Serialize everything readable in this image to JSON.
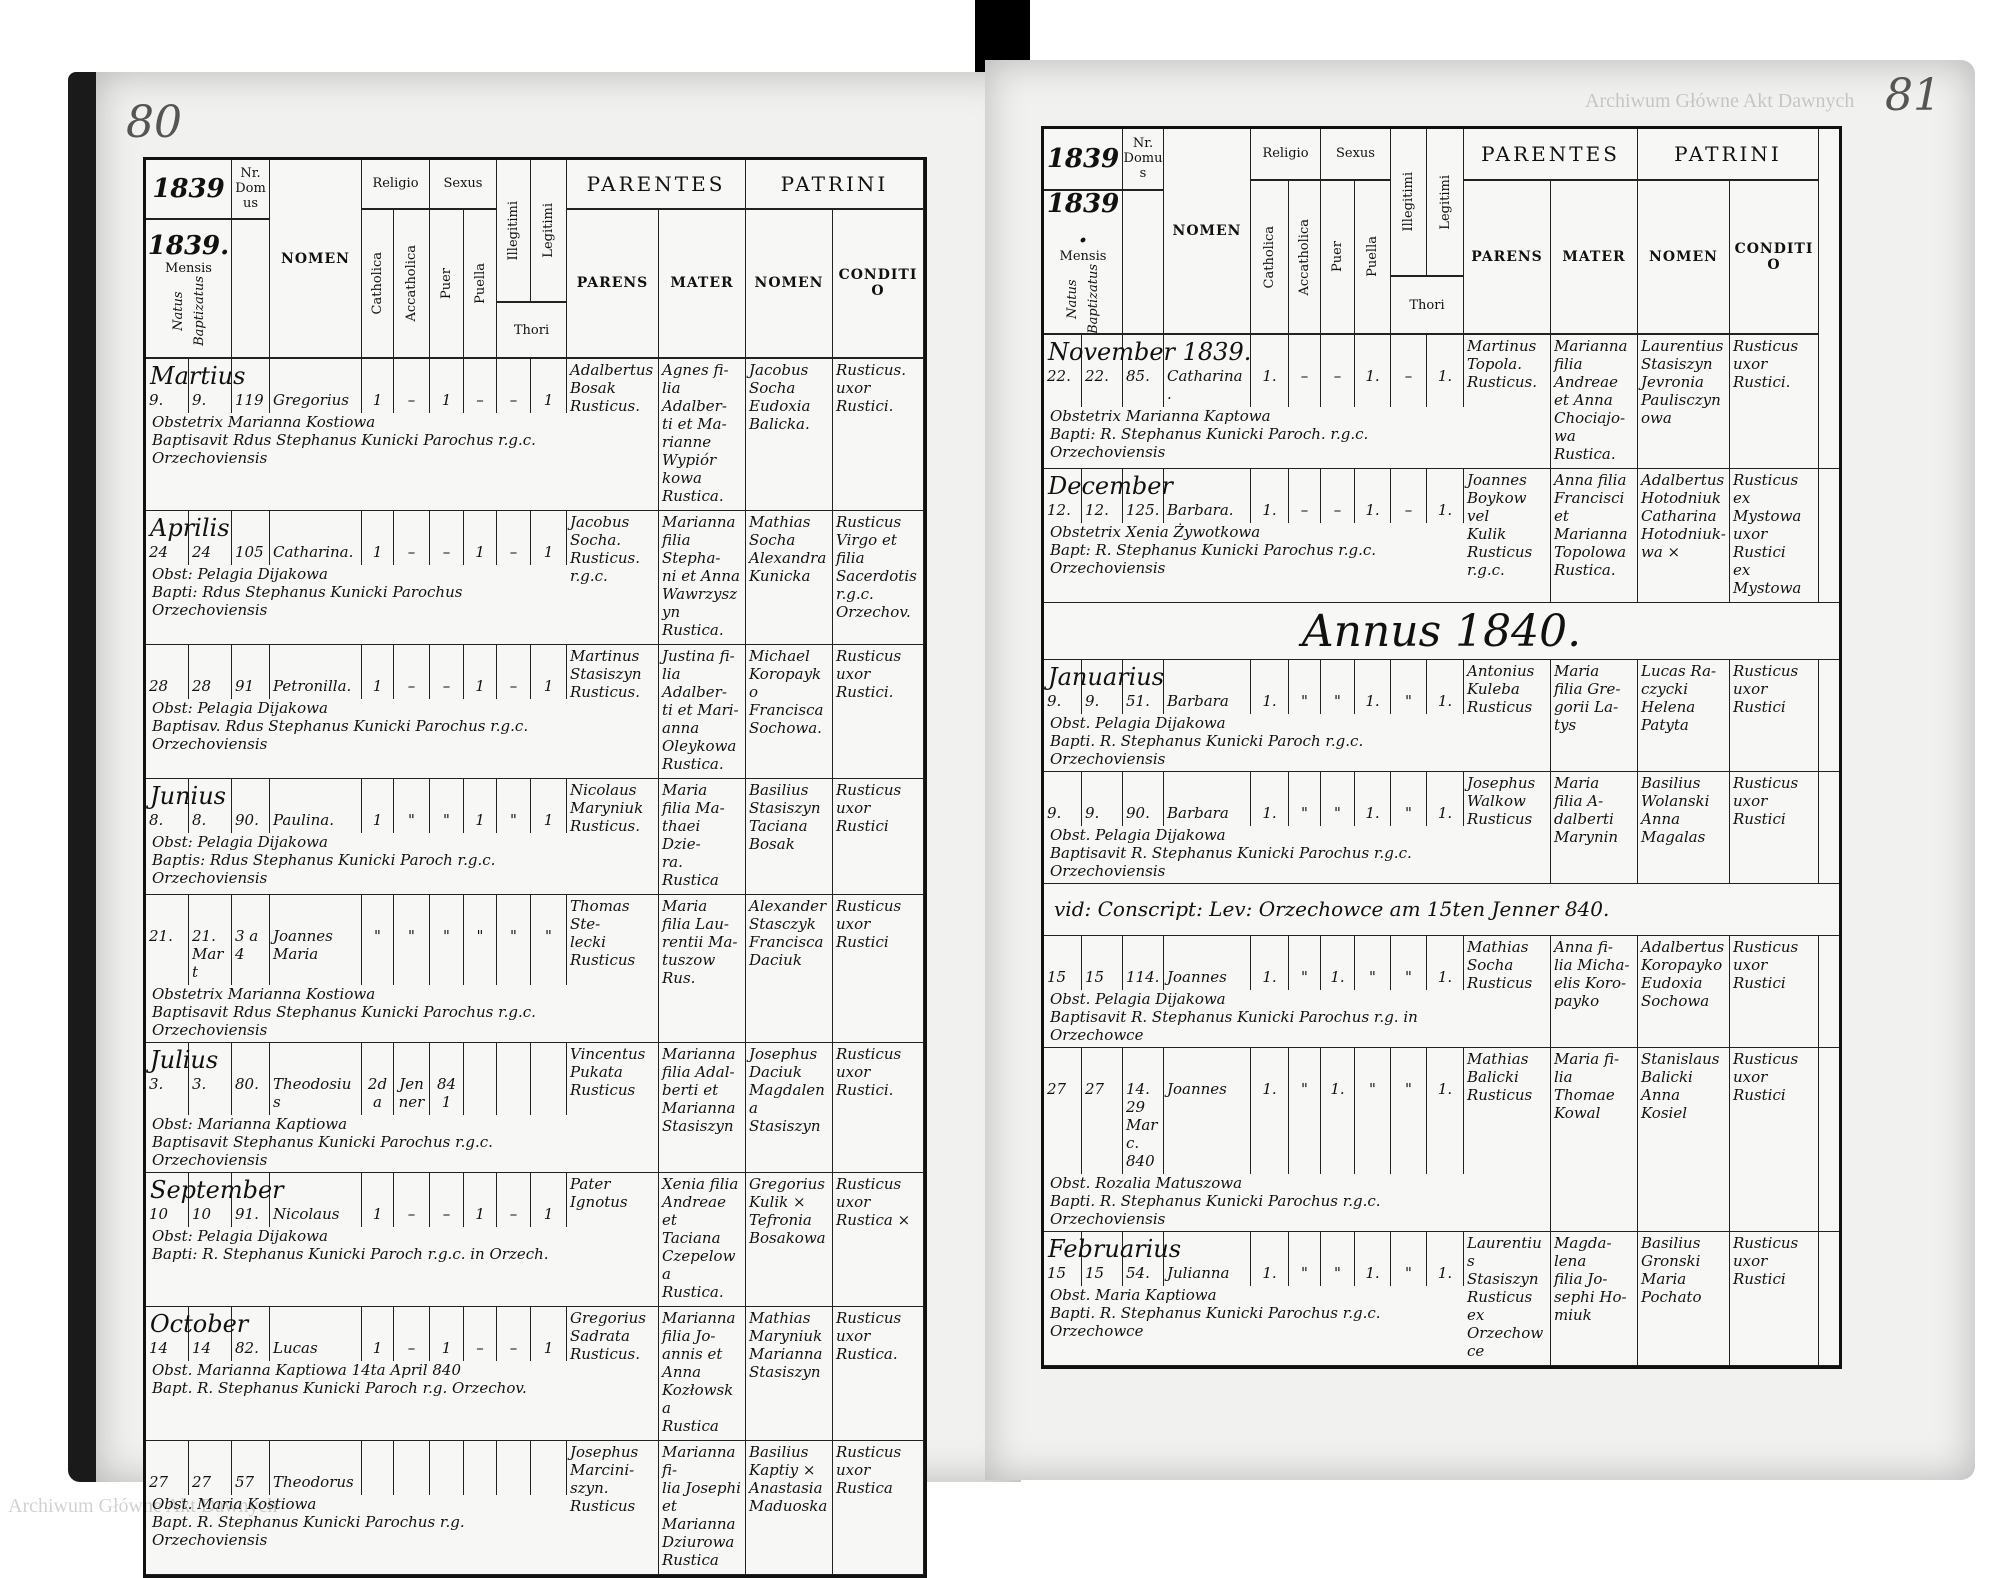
{
  "header": {
    "year_print": "1839",
    "year_hand": "1839.",
    "nr_domus": "Nr. Domus",
    "mensis": "Mensis",
    "natus": "Natus",
    "baptizatus": "Baptizatus",
    "nomen": "NOMEN",
    "religio": "Religio",
    "catholica": "Catholica",
    "accatholica": "Accatholica",
    "sexus": "Sexus",
    "puer": "Puer",
    "puella": "Puella",
    "illegitimi": "Illegitimi",
    "legitimi": "Legitimi",
    "thori": "Thori",
    "parentes": "PARENTES",
    "parens": "PARENS",
    "mater": "MATER",
    "patrini": "PATRINI",
    "patrini_nomen": "NOMEN",
    "conditio": "CONDITIO"
  },
  "left_page": {
    "page_number": "80",
    "entries": [
      {
        "month": "Martius",
        "natus": "9.",
        "baptizatus": "9.",
        "domus": "119",
        "nomen": "Gregorius",
        "marks": [
          "1",
          "–",
          "1",
          "–",
          "–",
          "1"
        ],
        "parens": "Adalbertus\nBosak\nRusticus.",
        "mater": "Agnes fi-\nlia Adalber-\nti et Ma-\nrianne\nWypiór\nkowa\nRustica.",
        "patrini": "Jacobus\nSocha\nEudoxia\nBalicka.",
        "conditio": "Rusticus.\nuxor\nRustici.",
        "notes": [
          "Obstetrix Marianna Kostiowa",
          "Baptisavit Rdus Stephanus Kunicki Parochus r.g.c. Orzechoviensis"
        ]
      },
      {
        "month": "Aprilis",
        "natus": "24",
        "baptizatus": "24",
        "domus": "105",
        "nomen": "Catharina.",
        "marks": [
          "1",
          "–",
          "–",
          "1",
          "–",
          "1"
        ],
        "parens": "Jacobus\nSocha.\nRusticus.\nr.g.c.",
        "mater": "Marianna\nfilia Stepha-\nni et Anna\nWawrzyszyn\nRustica.",
        "patrini": "Mathias\nSocha\nAlexandra\nKunicka",
        "conditio": "Rusticus\nVirgo et\nfilia Sacerdotis\nr.g.c. Orzechov.",
        "notes": [
          "Obst: Pelagia Dijakowa",
          "Bapti: Rdus Stephanus Kunicki Parochus Orzechoviensis"
        ]
      },
      {
        "month": "",
        "natus": "28",
        "baptizatus": "28",
        "domus": "91",
        "nomen": "Petronilla.",
        "marks": [
          "1",
          "–",
          "–",
          "1",
          "–",
          "1"
        ],
        "parens": "Martinus\nStasiszyn\nRusticus.",
        "mater": "Justina fi-\nlia Adalber-\nti et Mari-\nanna\nOleykowa\nRustica.",
        "patrini": "Michael\nKoropayko\nFrancisca\nSochowa.",
        "conditio": "Rusticus\nuxor\nRustici.",
        "notes": [
          "Obst: Pelagia Dijakowa",
          "Baptisav. Rdus Stephanus Kunicki Parochus r.g.c. Orzechoviensis"
        ]
      },
      {
        "month": "Junius",
        "natus": "8.",
        "baptizatus": "8.",
        "domus": "90.",
        "nomen": "Paulina.",
        "marks": [
          "1",
          "\"",
          "\"",
          "1",
          "\"",
          "1"
        ],
        "parens": "Nicolaus\nMaryniuk\nRusticus.",
        "mater": "Maria\nfilia Ma-\nthaei Dzie-\nra. Rustica",
        "patrini": "Basilius\nStasiszyn\nTaciana\nBosak",
        "conditio": "Rusticus\nuxor\nRustici",
        "notes": [
          "Obst: Pelagia Dijakowa",
          "Baptis: Rdus Stephanus Kunicki Paroch r.g.c. Orzechoviensis"
        ]
      },
      {
        "month": "",
        "natus": "21.",
        "baptizatus": "21. Mart",
        "domus": "3 a 4",
        "nomen": "Joannes\nMaria",
        "marks": [
          "\"",
          "\"",
          "\"",
          "\"",
          "\"",
          "\""
        ],
        "parens": "Thomas Ste-\nlecki\nRusticus",
        "mater": "Maria\nfilia Lau-\nrentii Ma-\ntuszow Rus.",
        "patrini": "Alexander\nStasczyk\nFrancisca\nDaciuk",
        "conditio": "Rusticus\nuxor\nRustici",
        "notes": [
          "Obstetrix Marianna Kostiowa",
          "Baptisavit Rdus Stephanus Kunicki Parochus r.g.c. Orzechoviensis"
        ]
      },
      {
        "month": "Julius",
        "natus": "3.",
        "baptizatus": "3.",
        "domus": "80.",
        "nomen": "Theodosius",
        "marks": [
          "2da",
          "Jenner",
          "841",
          "",
          "",
          ""
        ],
        "parens": "Vincentus\nPukata\nRusticus",
        "mater": "Marianna\nfilia Adal-\nberti et\nMarianna\nStasiszyn",
        "patrini": "Josephus\nDaciuk\nMagdalena\nStasiszyn",
        "conditio": "Rusticus\nuxor\nRustici.",
        "notes": [
          "Obst: Marianna Kaptiowa",
          "Baptisavit Stephanus Kunicki Parochus r.g.c. Orzechoviensis"
        ]
      },
      {
        "month": "September",
        "natus": "10",
        "baptizatus": "10",
        "domus": "91.",
        "nomen": "Nicolaus",
        "marks": [
          "1",
          "–",
          "–",
          "1",
          "–",
          "1"
        ],
        "parens": "Pater\nIgnotus",
        "mater": "Xenia filia\nAndreae et\nTaciana\nCzepelowa\nRustica.",
        "patrini": "Gregorius\nKulik ×\nTefronia\nBosakowa",
        "conditio": "Rusticus\nuxor\nRustica ×",
        "notes": [
          "Obst: Pelagia Dijakowa",
          "Bapti: R. Stephanus Kunicki Paroch r.g.c. in Orzech."
        ]
      },
      {
        "month": "October",
        "natus": "14",
        "baptizatus": "14",
        "domus": "82.",
        "nomen": "Lucas",
        "marks": [
          "1",
          "–",
          "1",
          "–",
          "–",
          "1"
        ],
        "parens": "Gregorius\nSadrata\nRusticus.",
        "mater": "Marianna\nfilia Jo-\nannis et\nAnna\nKozłowska\nRustica",
        "patrini": "Mathias\nMaryniuk\nMarianna\nStasiszyn",
        "conditio": "Rusticus\nuxor\nRustica.",
        "notes": [
          "Obst. Marianna Kaptiowa  14ta April 840",
          "Bapt. R. Stephanus Kunicki Paroch r.g. Orzechov."
        ]
      },
      {
        "month": "",
        "natus": "27",
        "baptizatus": "27",
        "domus": "57",
        "nomen": "Theodorus",
        "marks": [
          "",
          "",
          "",
          "",
          "",
          ""
        ],
        "parens": "Josephus\nMarcini-\nszyn.\nRusticus",
        "mater": "Marianna fi-\nlia Josephi\net Marianna\nDziurowa\nRustica",
        "patrini": "Basilius\nKaptiy ×\nAnastasia\nMaduoska",
        "conditio": "Rusticus\nuxor\nRustica",
        "notes": [
          "Obst. Maria Kostiowa",
          "Bapt. R. Stephanus Kunicki Parochus r.g. Orzechoviensis"
        ]
      }
    ]
  },
  "right_page": {
    "page_number": "81",
    "entries_1839": [
      {
        "month": "November 1839.",
        "natus": "22.",
        "baptizatus": "22.",
        "domus": "85.",
        "nomen": "Catharina.",
        "marks": [
          "1.",
          "–",
          "–",
          "1.",
          "–",
          "1."
        ],
        "parens": "Martinus\nTopola.\nRusticus.",
        "mater": "Marianna\nfilia Andreae\net Anna\nChociajo-\nwa\nRustica.",
        "patrini": "Laurentius\nStasiszyn\nJevronia\nPaulisczynowa",
        "conditio": "Rusticus\nuxor\nRustici.",
        "notes": [
          "Obstetrix Marianna Kaptowa",
          "Bapti: R. Stephanus Kunicki Paroch. r.g.c. Orzechoviensis"
        ]
      },
      {
        "month": "December",
        "natus": "12.",
        "baptizatus": "12.",
        "domus": "125.",
        "nomen": "Barbara.",
        "marks": [
          "1.",
          "–",
          "–",
          "1.",
          "–",
          "1."
        ],
        "parens": "Joannes\nBoykow\nvel\nKulik\nRusticus\nr.g.c.",
        "mater": "Anna filia\nFrancisci\net Marianna\nTopolowa\nRustica.",
        "patrini": "Adalbertus\nHotodniuk\nCatharina\nHotodniuk-\nwa ×",
        "conditio": "Rusticus\nex Mystowa\nuxor\nRustici\nex Mystowa",
        "notes": [
          "Obstetrix Xenia Żywotkowa",
          "Bapt: R. Stephanus Kunicki Parochus r.g.c. Orzechoviensis"
        ]
      }
    ],
    "year_title": "Annus 1840.",
    "entries_1840a": [
      {
        "month": "Januarius",
        "natus": "9.",
        "baptizatus": "9.",
        "domus": "51.",
        "nomen": "Barbara",
        "marks": [
          "1.",
          "\"",
          "\"",
          "1.",
          "\"",
          "1."
        ],
        "parens": "Antonius\nKuleba\nRusticus",
        "mater": "Maria\nfilia Gre-\ngorii La-\ntys",
        "patrini": "Lucas Ra-\nczycki\nHelena\nPatyta",
        "conditio": "Rusticus\nuxor\nRustici",
        "notes": [
          "Obst. Pelagia Dijakowa",
          "Bapti. R. Stephanus Kunicki Paroch r.g.c. Orzechoviensis"
        ]
      },
      {
        "month": "",
        "natus": "9.",
        "baptizatus": "9.",
        "domus": "90.",
        "nomen": "Barbara",
        "marks": [
          "1.",
          "\"",
          "\"",
          "1.",
          "\"",
          "1."
        ],
        "parens": "Josephus\nWalkow\nRusticus",
        "mater": "Maria\nfilia A-\ndalberti\nMarynin",
        "patrini": "Basilius\nWolanski\nAnna\nMagalas",
        "conditio": "Rusticus\nuxor\nRustici",
        "notes": [
          "Obst. Pelagia Dijakowa",
          "Baptisavit R. Stephanus Kunicki Parochus r.g.c. Orzechoviensis"
        ]
      }
    ],
    "conscription_note": "vid: Conscript: Lev: Orzechowce am 15ten Jenner 840.",
    "entries_1840b": [
      {
        "month": "",
        "natus": "15",
        "baptizatus": "15",
        "domus": "114.",
        "nomen": "Joannes",
        "marks": [
          "1.",
          "\"",
          "1.",
          "\"",
          "\"",
          "1."
        ],
        "parens": "Mathias\nSocha\nRusticus",
        "mater": "Anna fi-\nlia Micha-\nelis Koro-\npayko",
        "patrini": "Adalbertus\nKoropayko\nEudoxia\nSochowa",
        "conditio": "Rusticus\nuxor\nRustici",
        "notes": [
          "Obst. Pelagia Dijakowa",
          "Baptisavit R. Stephanus Kunicki Parochus r.g. in Orzechowce"
        ]
      },
      {
        "month": "",
        "natus": "27",
        "baptizatus": "27",
        "domus": "14.\n29 Marc. 840",
        "nomen": "Joannes",
        "marks": [
          "1.",
          "\"",
          "1.",
          "\"",
          "\"",
          "1."
        ],
        "parens": "Mathias\nBalicki\nRusticus",
        "mater": "Maria fi-\nlia Thomae\nKowal",
        "patrini": "Stanislaus\nBalicki\nAnna\nKosiel",
        "conditio": "Rusticus\nuxor\nRustici",
        "notes": [
          "Obst. Rozalia Matuszowa",
          "Bapti. R. Stephanus Kunicki Parochus r.g.c. Orzechoviensis"
        ]
      },
      {
        "month": "Februarius",
        "natus": "15",
        "baptizatus": "15",
        "domus": "54.",
        "nomen": "Julianna",
        "marks": [
          "1.",
          "\"",
          "\"",
          "1.",
          "\"",
          "1."
        ],
        "parens": "Laurentius\nStasiszyn\nRusticus\nex\nOrzechowce",
        "mater": "Magda-\nlena\nfilia Jo-\nsephi Ho-\nmiuk",
        "patrini": "Basilius\nGronski\nMaria\nPochato",
        "conditio": "Rusticus\nuxor\nRustici",
        "notes": [
          "Obst. Maria Kaptiowa",
          "Bapti. R. Stephanus Kunicki Parochus r.g.c. Orzechowce"
        ]
      }
    ]
  },
  "watermark": "Archiwum Główne Akt Dawnych"
}
